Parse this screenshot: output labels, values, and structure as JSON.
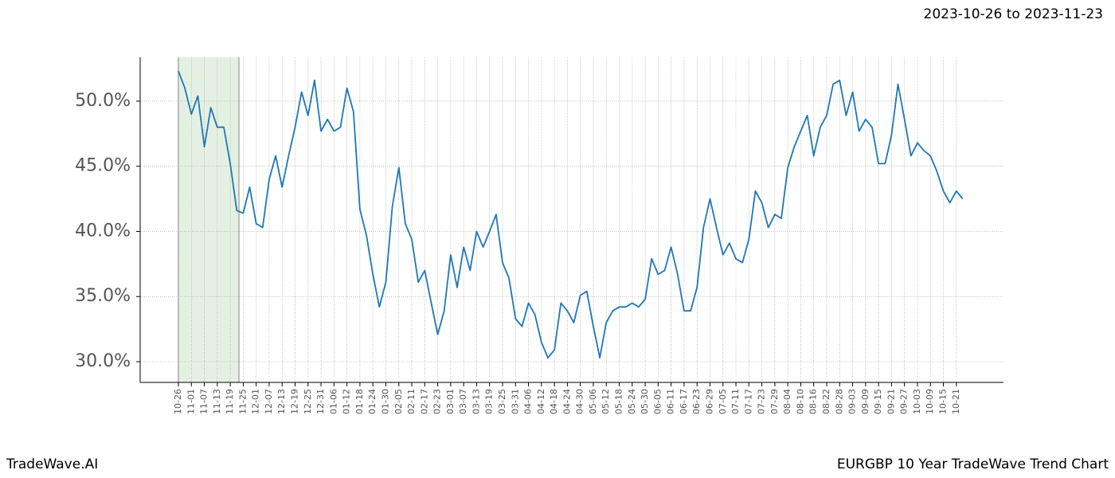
{
  "chart_data": {
    "type": "line",
    "title": "EURGBP 10 Year TradeWave Trend Chart",
    "brand": "TradeWave.AI",
    "date_range": "2023-10-26 to 2023-11-23",
    "color": "#1f77b4",
    "grid": true,
    "categories": [
      "10-26",
      null,
      "11-01",
      null,
      "11-07",
      null,
      "11-13",
      null,
      "11-19",
      null,
      "11-25",
      null,
      "12-01",
      null,
      "12-07",
      null,
      "12-13",
      null,
      "12-19",
      null,
      "12-25",
      null,
      "12-31",
      null,
      "01-06",
      null,
      "01-12",
      null,
      "01-18",
      null,
      "01-24",
      null,
      "01-30",
      null,
      "02-05",
      null,
      "02-11",
      null,
      "02-17",
      null,
      "02-23",
      null,
      "03-01",
      null,
      "03-07",
      null,
      "03-13",
      null,
      "03-19",
      null,
      "03-25",
      null,
      "03-31",
      null,
      "04-06",
      null,
      "04-12",
      null,
      "04-18",
      null,
      "04-24",
      null,
      "04-30",
      null,
      "05-06",
      null,
      "05-12",
      null,
      "05-18",
      null,
      "05-24",
      null,
      "05-30",
      null,
      "06-05",
      null,
      "06-11",
      null,
      "06-17",
      null,
      "06-23",
      null,
      "06-29",
      null,
      "07-05",
      null,
      "07-11",
      null,
      "07-17",
      null,
      "07-23",
      null,
      "07-29",
      null,
      "08-04",
      null,
      "08-10",
      null,
      "08-16",
      null,
      "08-22",
      null,
      "08-28",
      null,
      "09-03",
      null,
      "09-09",
      null,
      "09-15",
      null,
      "09-21",
      null,
      "09-27",
      null,
      "10-03",
      null,
      "10-09",
      null,
      "10-15",
      null,
      "10-21",
      null
    ],
    "values": [
      52.3,
      51.0,
      49.0,
      50.4,
      46.5,
      49.5,
      48.0,
      48.0,
      45.2,
      41.6,
      41.4,
      43.4,
      40.6,
      40.3,
      44.0,
      45.8,
      43.4,
      45.8,
      48.0,
      50.7,
      48.9,
      51.6,
      47.7,
      48.6,
      47.7,
      48.0,
      51.0,
      49.2,
      41.7,
      39.7,
      36.7,
      34.2,
      36.1,
      41.9,
      44.9,
      40.6,
      39.4,
      36.1,
      37.0,
      34.5,
      32.1,
      33.9,
      38.2,
      35.7,
      38.8,
      37.0,
      40.0,
      38.8,
      40.0,
      41.3,
      37.6,
      36.4,
      33.3,
      32.7,
      34.5,
      33.6,
      31.5,
      30.3,
      30.9,
      34.5,
      33.9,
      33.0,
      35.1,
      35.4,
      32.7,
      30.3,
      33.0,
      33.9,
      34.2,
      34.2,
      34.5,
      34.2,
      34.8,
      37.9,
      36.7,
      37.0,
      38.8,
      36.7,
      33.9,
      33.9,
      35.7,
      40.3,
      42.5,
      40.3,
      38.2,
      39.1,
      37.9,
      37.6,
      39.4,
      43.1,
      42.2,
      40.3,
      41.3,
      41.0,
      44.9,
      46.5,
      47.7,
      48.9,
      45.8,
      48.0,
      48.9,
      51.3,
      51.6,
      48.9,
      50.7,
      47.7,
      48.6,
      48.0,
      45.2,
      45.2,
      47.4,
      51.3,
      48.6,
      45.8,
      46.8,
      46.2,
      45.8,
      44.6,
      43.1,
      42.2,
      43.1,
      42.5
    ],
    "ylim": [
      28.41,
      53.36
    ],
    "yticks": [
      {
        "value": 30,
        "label": "30.0%"
      },
      {
        "value": 35,
        "label": "35.0%"
      },
      {
        "value": 40,
        "label": "40.0%"
      },
      {
        "value": 45,
        "label": "45.0%"
      },
      {
        "value": 50,
        "label": "50.0%"
      }
    ]
  }
}
